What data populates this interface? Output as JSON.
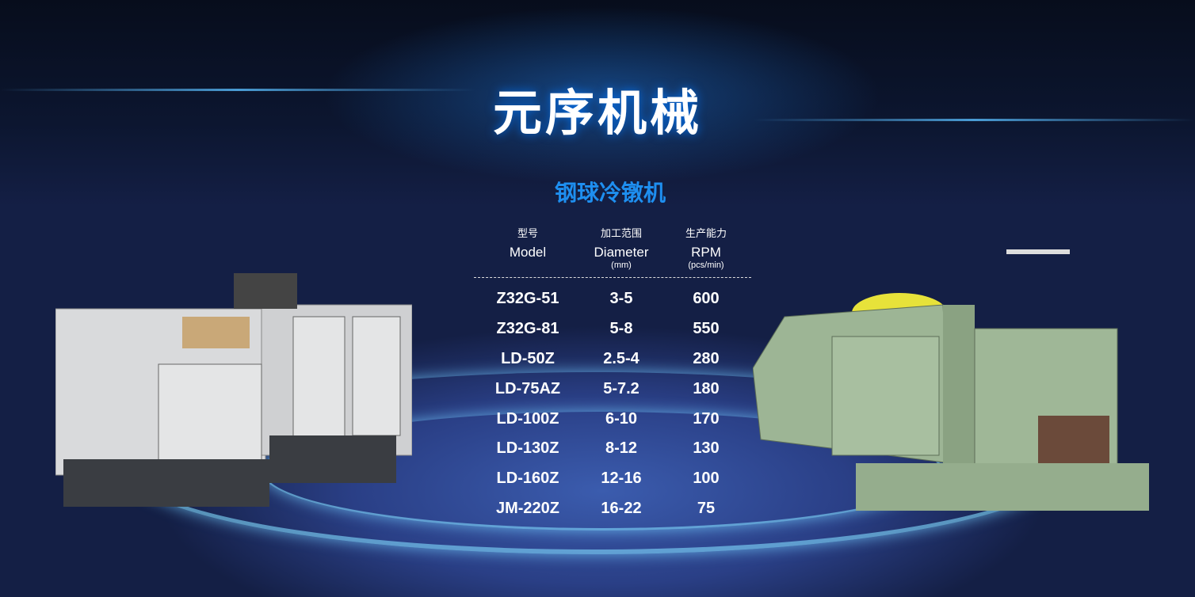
{
  "title": "元序机械",
  "subtitle": "钢球冷镦机",
  "table": {
    "headers": [
      {
        "zh": "型号",
        "en": "Model",
        "unit": ""
      },
      {
        "zh": "加工范围",
        "en": "Diameter",
        "unit": "(mm)"
      },
      {
        "zh": "生产能力",
        "en": "RPM",
        "unit": "(pcs/min)"
      }
    ],
    "rows": [
      [
        "Z32G-51",
        "3-5",
        "600"
      ],
      [
        "Z32G-81",
        "5-8",
        "550"
      ],
      [
        "LD-50Z",
        "2.5-4",
        "280"
      ],
      [
        "LD-75AZ",
        "5-7.2",
        "180"
      ],
      [
        "LD-100Z",
        "6-10",
        "170"
      ],
      [
        "LD-130Z",
        "8-12",
        "130"
      ],
      [
        "LD-160Z",
        "12-16",
        "100"
      ],
      [
        "JM-220Z",
        "16-22",
        "75"
      ]
    ]
  },
  "colors": {
    "accent": "#1e8ff0",
    "left_machine": "#d9dadc",
    "right_machine": "#9db595"
  }
}
